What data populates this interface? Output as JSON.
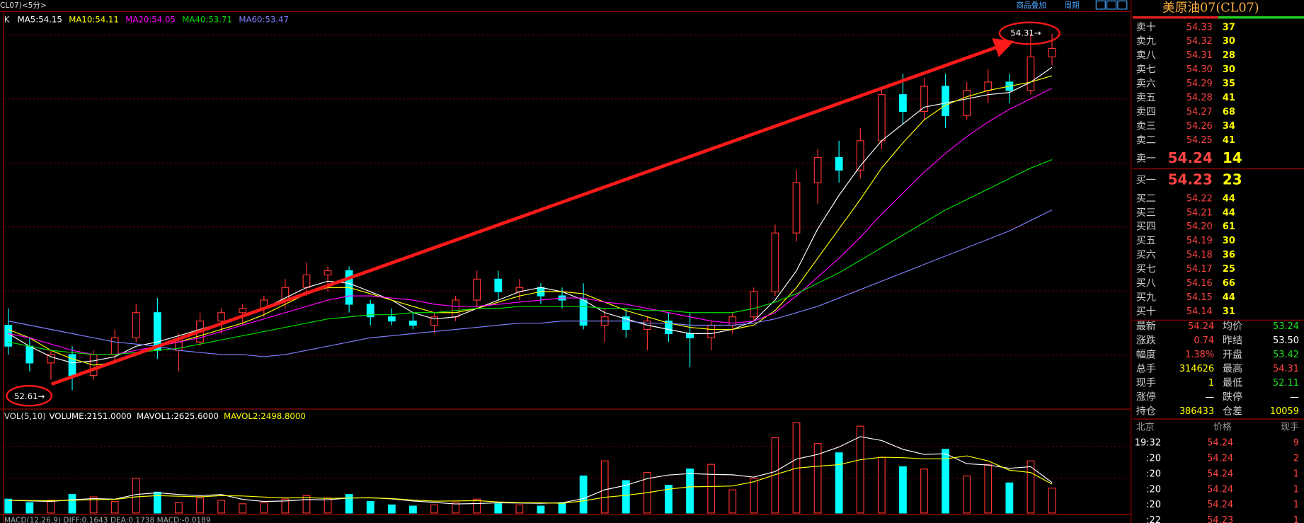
{
  "toolbar": {
    "symbol": "CL07)<5分>",
    "overlay": "商品叠加",
    "period": "周期"
  },
  "chart_data": [
    {
      "type": "candlestick",
      "title": "K",
      "categories": [
        null,
        null,
        null,
        null,
        null,
        null,
        null,
        null,
        null,
        null,
        null,
        null,
        null,
        null,
        null,
        null,
        null,
        null,
        null,
        null,
        null,
        null,
        null,
        null,
        null,
        null,
        null,
        null,
        null,
        null,
        null,
        null,
        null,
        null,
        null,
        null,
        null,
        null,
        null,
        null,
        null,
        null,
        null,
        null,
        null,
        null,
        null,
        null,
        null,
        null
      ],
      "open": [
        52.92,
        52.82,
        52.74,
        52.78,
        52.68,
        52.78,
        52.86,
        52.98,
        52.8,
        52.84,
        52.94,
        52.98,
        53.0,
        53.04,
        53.1,
        53.16,
        53.18,
        53.02,
        52.96,
        52.94,
        52.92,
        52.96,
        53.04,
        53.14,
        53.08,
        53.1,
        53.06,
        53.04,
        52.92,
        52.96,
        52.9,
        52.94,
        52.88,
        52.86,
        52.92,
        52.96,
        53.08,
        53.36,
        53.6,
        53.72,
        53.66,
        53.8,
        54.02,
        53.94,
        54.06,
        53.92,
        54.04,
        54.08,
        54.04,
        54.2
      ],
      "high": [
        53.0,
        52.86,
        52.8,
        52.82,
        52.8,
        52.9,
        53.02,
        53.05,
        52.88,
        52.98,
        53.0,
        53.02,
        53.06,
        53.14,
        53.22,
        53.2,
        53.2,
        53.04,
        53.0,
        52.98,
        52.98,
        53.06,
        53.18,
        53.18,
        53.14,
        53.12,
        53.1,
        53.12,
        53.0,
        53.0,
        52.96,
        52.98,
        52.98,
        52.94,
        52.98,
        53.1,
        53.4,
        53.66,
        53.76,
        53.8,
        53.86,
        54.06,
        54.12,
        54.1,
        54.12,
        54.08,
        54.14,
        54.12,
        54.31,
        54.31
      ],
      "low": [
        52.78,
        52.7,
        52.66,
        52.61,
        52.66,
        52.74,
        52.84,
        52.76,
        52.7,
        52.82,
        52.88,
        52.92,
        52.96,
        53.0,
        53.06,
        53.08,
        52.98,
        52.92,
        52.92,
        52.9,
        52.88,
        52.94,
        53.0,
        53.04,
        53.04,
        53.02,
        53.0,
        52.9,
        52.84,
        52.86,
        52.8,
        52.84,
        52.72,
        52.8,
        52.88,
        52.94,
        53.06,
        53.32,
        53.5,
        53.6,
        53.62,
        53.76,
        53.88,
        53.9,
        53.86,
        53.9,
        53.98,
        53.98,
        54.02,
        54.16
      ],
      "close": [
        52.82,
        52.74,
        52.78,
        52.68,
        52.78,
        52.86,
        52.98,
        52.8,
        52.84,
        52.94,
        52.98,
        53.0,
        53.04,
        53.1,
        53.16,
        53.18,
        53.02,
        52.96,
        52.94,
        52.92,
        52.96,
        53.04,
        53.14,
        53.08,
        53.1,
        53.06,
        53.04,
        52.92,
        52.96,
        52.9,
        52.94,
        52.88,
        52.86,
        52.92,
        52.96,
        53.08,
        53.36,
        53.6,
        53.72,
        53.66,
        53.8,
        54.02,
        53.94,
        54.06,
        53.92,
        54.04,
        54.08,
        54.04,
        54.2,
        54.24
      ],
      "up_color": "#ff3232",
      "down_color": "#00ffff",
      "series": [
        {
          "name": "MA5:54.15",
          "color": "#ffffff",
          "values": [
            52.88,
            52.82,
            52.77,
            52.74,
            52.75,
            52.77,
            52.82,
            52.84,
            52.87,
            52.9,
            52.93,
            52.96,
            53.0,
            53.05,
            53.1,
            53.13,
            53.12,
            53.08,
            53.04,
            52.98,
            52.95,
            52.96,
            53.0,
            53.04,
            53.08,
            53.1,
            53.08,
            53.04,
            52.98,
            52.95,
            52.92,
            52.9,
            52.88,
            52.88,
            52.9,
            52.94,
            53.04,
            53.18,
            53.38,
            53.54,
            53.68,
            53.8,
            53.88,
            53.96,
            53.98,
            54.0,
            54.02,
            54.03,
            54.08,
            54.15
          ]
        },
        {
          "name": "MA10:54.11",
          "color": "#ffff00",
          "values": [
            52.9,
            52.86,
            52.8,
            52.76,
            52.73,
            52.74,
            52.78,
            52.82,
            52.84,
            52.87,
            52.9,
            52.93,
            52.97,
            53.02,
            53.07,
            53.1,
            53.1,
            53.07,
            53.04,
            53.01,
            52.98,
            52.98,
            53.0,
            53.03,
            53.06,
            53.08,
            53.08,
            53.07,
            53.03,
            52.99,
            52.96,
            52.93,
            52.91,
            52.9,
            52.9,
            52.92,
            52.99,
            53.1,
            53.24,
            53.38,
            53.52,
            53.67,
            53.79,
            53.9,
            53.97,
            54.01,
            54.04,
            54.06,
            54.08,
            54.11
          ]
        },
        {
          "name": "MA20:54.05",
          "color": "#ff00ff",
          "values": [
            52.88,
            52.86,
            52.83,
            52.8,
            52.78,
            52.78,
            52.8,
            52.82,
            52.84,
            52.86,
            52.89,
            52.92,
            52.95,
            52.98,
            53.01,
            53.04,
            53.06,
            53.06,
            53.05,
            53.04,
            53.02,
            53.01,
            53.01,
            53.02,
            53.03,
            53.04,
            53.05,
            53.05,
            53.03,
            53.02,
            53.0,
            52.98,
            52.96,
            52.94,
            52.93,
            52.94,
            52.98,
            53.06,
            53.15,
            53.24,
            53.34,
            53.45,
            53.55,
            53.65,
            53.74,
            53.82,
            53.89,
            53.95,
            54.0,
            54.05
          ]
        },
        {
          "name": "MA40:53.71",
          "color": "#00e000",
          "values": [
            52.84,
            52.82,
            52.8,
            52.79,
            52.78,
            52.78,
            52.79,
            52.8,
            52.81,
            52.83,
            52.85,
            52.87,
            52.89,
            52.91,
            52.93,
            52.95,
            52.96,
            52.97,
            52.97,
            52.98,
            52.98,
            52.99,
            53.0,
            53.0,
            53.01,
            53.01,
            53.01,
            53.01,
            53.0,
            53.0,
            52.99,
            52.99,
            52.98,
            52.98,
            52.98,
            53.0,
            53.03,
            53.07,
            53.12,
            53.17,
            53.23,
            53.29,
            53.35,
            53.41,
            53.47,
            53.52,
            53.57,
            53.62,
            53.67,
            53.71
          ]
        },
        {
          "name": "MA60:53.47",
          "color": "#8080ff",
          "values": [
            52.94,
            52.92,
            52.9,
            52.88,
            52.86,
            52.84,
            52.83,
            52.82,
            52.8,
            52.79,
            52.78,
            52.78,
            52.77,
            52.78,
            52.8,
            52.82,
            52.84,
            52.86,
            52.87,
            52.88,
            52.89,
            52.9,
            52.91,
            52.92,
            52.93,
            52.93,
            52.94,
            52.94,
            52.94,
            52.94,
            52.93,
            52.93,
            52.92,
            52.92,
            52.92,
            52.93,
            52.95,
            52.98,
            53.01,
            53.05,
            53.09,
            53.13,
            53.17,
            53.21,
            53.25,
            53.29,
            53.33,
            53.37,
            53.42,
            53.47
          ]
        }
      ],
      "ylim": [
        52.52,
        54.4
      ],
      "annotations": [
        {
          "text": "52.61→"
        },
        {
          "text": "54.31→"
        }
      ]
    },
    {
      "type": "bar",
      "title": "VOL(5,10)",
      "series": [
        {
          "name": "VOLUME:2151.0000",
          "color": "#ffffff",
          "values": [
            1200,
            900,
            1100,
            1600,
            1400,
            1000,
            3000,
            1800,
            900,
            1300,
            1100,
            800,
            900,
            1200,
            1500,
            1300,
            1600,
            1000,
            700,
            600,
            700,
            900,
            1200,
            800,
            700,
            600,
            900,
            3200,
            4500,
            2800,
            3500,
            2400,
            3800,
            4200,
            2000,
            3000,
            6500,
            7800,
            6000,
            5200,
            7500,
            4800,
            4000,
            3800,
            5500,
            3200,
            4200,
            2600,
            4500,
            2151
          ]
        },
        {
          "name": "MAVOL1:2625.6000",
          "color": "#ffffff",
          "values": [
            1100,
            1050,
            1000,
            1150,
            1250,
            1200,
            1600,
            1750,
            1600,
            1500,
            1600,
            1180,
            1000,
            1040,
            1160,
            1140,
            1300,
            1320,
            1220,
            1040,
            920,
            780,
            820,
            880,
            860,
            840,
            880,
            1240,
            2000,
            2400,
            2980,
            3280,
            3400,
            3340,
            3300,
            3100,
            3580,
            4660,
            5060,
            5700,
            6600,
            6260,
            5500,
            5060,
            5120,
            4260,
            4140,
            3860,
            4000,
            2625.6
          ]
        },
        {
          "name": "MAVOL2:2498.8000",
          "color": "#ffff00",
          "values": [
            1100,
            1080,
            1060,
            1100,
            1150,
            1180,
            1400,
            1500,
            1450,
            1400,
            1500,
            1470,
            1380,
            1300,
            1330,
            1260,
            1300,
            1310,
            1250,
            1120,
            1030,
            1040,
            1070,
            960,
            900,
            880,
            840,
            1050,
            1360,
            1530,
            1760,
            2060,
            2260,
            2290,
            2330,
            2700,
            3300,
            3880,
            4040,
            4180,
            4600,
            4820,
            4780,
            4680,
            4680,
            4930,
            4500,
            3700,
            3500,
            2498.8
          ]
        }
      ],
      "ylim": [
        0,
        8400
      ]
    }
  ],
  "macd_header": "MACD(12,26,9) DIFF:0.1643 DEA:0.1738 MACD:-0.0189",
  "quote_panel": {
    "title": "美原油07(CL07)",
    "asks": [
      {
        "label": "卖十",
        "price": "54.33",
        "qty": "37"
      },
      {
        "label": "卖九",
        "price": "54.32",
        "qty": "30"
      },
      {
        "label": "卖八",
        "price": "54.31",
        "qty": "28"
      },
      {
        "label": "卖七",
        "price": "54.30",
        "qty": "30"
      },
      {
        "label": "卖六",
        "price": "54.29",
        "qty": "35"
      },
      {
        "label": "卖五",
        "price": "54.28",
        "qty": "41"
      },
      {
        "label": "卖四",
        "price": "54.27",
        "qty": "68"
      },
      {
        "label": "卖三",
        "price": "54.26",
        "qty": "34"
      },
      {
        "label": "卖二",
        "price": "54.25",
        "qty": "41"
      },
      {
        "label": "卖一",
        "price": "54.24",
        "qty": "14"
      }
    ],
    "bids": [
      {
        "label": "买一",
        "price": "54.23",
        "qty": "23"
      },
      {
        "label": "买二",
        "price": "54.22",
        "qty": "44"
      },
      {
        "label": "买三",
        "price": "54.21",
        "qty": "44"
      },
      {
        "label": "买四",
        "price": "54.20",
        "qty": "61"
      },
      {
        "label": "买五",
        "price": "54.19",
        "qty": "30"
      },
      {
        "label": "买六",
        "price": "54.18",
        "qty": "36"
      },
      {
        "label": "买七",
        "price": "54.17",
        "qty": "25"
      },
      {
        "label": "买八",
        "price": "54.16",
        "qty": "66"
      },
      {
        "label": "买九",
        "price": "54.15",
        "qty": "44"
      },
      {
        "label": "买十",
        "price": "54.14",
        "qty": "31"
      }
    ],
    "stats": [
      [
        "最新",
        "54.24",
        "均价",
        "53.24"
      ],
      [
        "涨跌",
        "0.74",
        "昨结",
        "53.50"
      ],
      [
        "幅度",
        "1.38%",
        "开盘",
        "53.42"
      ],
      [
        "总手",
        "314626",
        "最高",
        "54.31"
      ],
      [
        "现手",
        "1",
        "最低",
        "52.11"
      ],
      [
        "涨停",
        "—",
        "跌停",
        "—"
      ],
      [
        "持仓",
        "386433",
        "仓差",
        "10059"
      ]
    ],
    "ticks": {
      "header": [
        "北京",
        "价格",
        "现手"
      ],
      "rows": [
        [
          "19:32",
          "54.24",
          "9"
        ],
        [
          ":20",
          "54.24",
          "2"
        ],
        [
          ":20",
          "54.24",
          "1"
        ],
        [
          ":20",
          "54.24",
          "1"
        ],
        [
          ":20",
          "54.24",
          "1"
        ],
        [
          ":22",
          "54.23",
          "1"
        ]
      ]
    }
  }
}
